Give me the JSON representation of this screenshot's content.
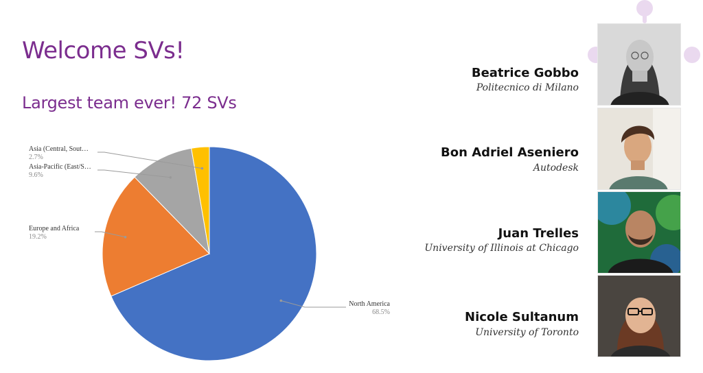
{
  "slide": {
    "title": "Welcome SVs!",
    "subtitle": "Largest team ever! 72 SVs"
  },
  "chart_data": {
    "type": "pie",
    "title": "",
    "slices": [
      {
        "label": "North America",
        "value": 68.5,
        "pct_text": "68.5%",
        "color": "#4472c4"
      },
      {
        "label": "Europe and Africa",
        "value": 19.2,
        "pct_text": "19.2%",
        "color": "#ed7d31"
      },
      {
        "label": "Asia-Pacific (East/S…",
        "value": 9.6,
        "pct_text": "9.6%",
        "color": "#a5a5a5"
      },
      {
        "label": "Asia (Central, Sout…",
        "value": 2.7,
        "pct_text": "2.7%",
        "color": "#ffc000"
      }
    ]
  },
  "people": [
    {
      "name": "Beatrice Gobbo",
      "affiliation": "Politecnico di Milano"
    },
    {
      "name": "Bon Adriel Aseniero",
      "affiliation": "Autodesk"
    },
    {
      "name": "Juan Trelles",
      "affiliation": "University of Illinois at Chicago"
    },
    {
      "name": "Nicole Sultanum",
      "affiliation": "University of Toronto"
    }
  ],
  "colors": {
    "accent": "#7b2d8e",
    "decoration": "#ead9ef"
  }
}
